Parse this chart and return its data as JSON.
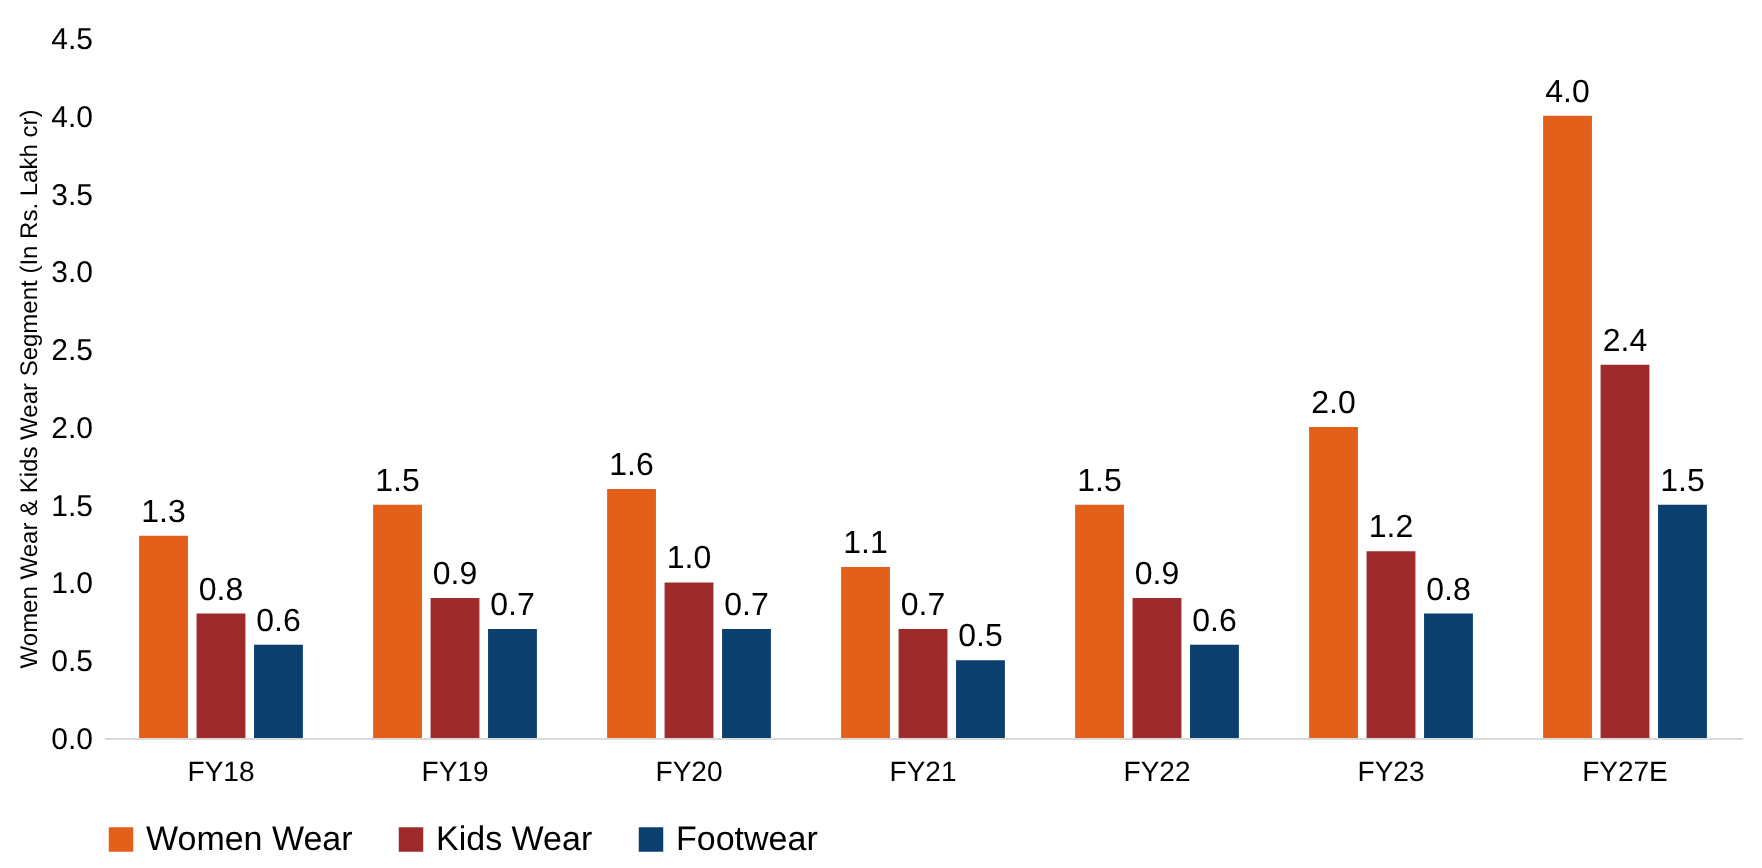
{
  "chart_data": {
    "type": "bar",
    "ylabel": "Women Wear & Kids Wear Segment (In Rs. Lakh cr)",
    "categories": [
      "FY18",
      "FY19",
      "FY20",
      "FY21",
      "FY22",
      "FY23",
      "FY27E"
    ],
    "series": [
      {
        "name": "Women Wear",
        "color": "#e2601a",
        "values": [
          1.3,
          1.5,
          1.6,
          1.1,
          1.5,
          2.0,
          4.0
        ],
        "value_labels": [
          "1.3",
          "1.5",
          "1.6",
          "1.1",
          "1.5",
          "2.0",
          "4.0"
        ]
      },
      {
        "name": "Kids Wear",
        "color": "#9e2a2b",
        "values": [
          0.8,
          0.9,
          1.0,
          0.7,
          0.9,
          1.2,
          2.4
        ],
        "value_labels": [
          "0.8",
          "0.9",
          "1.0",
          "0.7",
          "0.9",
          "1.2",
          "2.4"
        ]
      },
      {
        "name": "Footwear",
        "color": "#0b3f6e",
        "values": [
          0.6,
          0.7,
          0.7,
          0.5,
          0.6,
          0.8,
          1.5
        ],
        "value_labels": [
          "0.6",
          "0.7",
          "0.7",
          "0.5",
          "0.6",
          "0.8",
          "1.5"
        ]
      }
    ],
    "ylim": [
      0,
      4.5
    ],
    "yticks": [
      {
        "value": 0,
        "label": "0.0"
      },
      0.5,
      {
        "value": 1,
        "label": "1.0"
      },
      1.5,
      {
        "value": 2,
        "label": "2.0"
      },
      2.5,
      {
        "value": 3,
        "label": "3.0"
      },
      3.5,
      {
        "value": 4,
        "label": "4.0"
      },
      4.5
    ],
    "grid": false,
    "legend": "bottom"
  }
}
